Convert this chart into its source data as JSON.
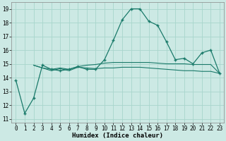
{
  "xlabel": "Humidex (Indice chaleur)",
  "xlim": [
    -0.5,
    23.5
  ],
  "ylim": [
    10.7,
    19.5
  ],
  "yticks": [
    11,
    12,
    13,
    14,
    15,
    16,
    17,
    18,
    19
  ],
  "xtick_labels": [
    "0",
    "1",
    "2",
    "3",
    "4",
    "5",
    "6",
    "7",
    "8",
    "9",
    "10",
    "11",
    "12",
    "13",
    "14",
    "15",
    "16",
    "17",
    "18",
    "19",
    "20",
    "21",
    "22",
    "23"
  ],
  "bg_color": "#cce9e4",
  "grid_color": "#a8d5cc",
  "line_color": "#1a7a6a",
  "series1_x": [
    0,
    1,
    2,
    3,
    4,
    5,
    6,
    7,
    8,
    9,
    10,
    11,
    12,
    13,
    14,
    15,
    16,
    17,
    18,
    19,
    20,
    21,
    22,
    23
  ],
  "series1_y": [
    13.8,
    11.4,
    12.5,
    14.9,
    14.6,
    14.5,
    14.6,
    14.8,
    14.6,
    14.6,
    15.3,
    16.7,
    18.2,
    19.0,
    19.0,
    18.1,
    17.8,
    16.6,
    15.3,
    15.4,
    15.0,
    15.8,
    16.0,
    14.3
  ],
  "series2_x": [
    2,
    3,
    4,
    5,
    6,
    7,
    8,
    9,
    10,
    11,
    12,
    13,
    14,
    15,
    16,
    17,
    18,
    19,
    20,
    21,
    22,
    23
  ],
  "series2_y": [
    14.9,
    14.7,
    14.6,
    14.7,
    14.6,
    14.8,
    14.9,
    14.95,
    15.05,
    15.1,
    15.1,
    15.1,
    15.1,
    15.1,
    15.05,
    15.0,
    15.0,
    15.0,
    14.95,
    14.95,
    14.95,
    14.3
  ],
  "series3_x": [
    2,
    3,
    4,
    5,
    6,
    7,
    8,
    9,
    10,
    11,
    12,
    13,
    14,
    15,
    16,
    17,
    18,
    19,
    20,
    21,
    22,
    23
  ],
  "series3_y": [
    14.9,
    14.7,
    14.5,
    14.65,
    14.5,
    14.75,
    14.7,
    14.65,
    14.7,
    14.7,
    14.75,
    14.75,
    14.75,
    14.7,
    14.65,
    14.6,
    14.55,
    14.5,
    14.5,
    14.45,
    14.45,
    14.3
  ]
}
